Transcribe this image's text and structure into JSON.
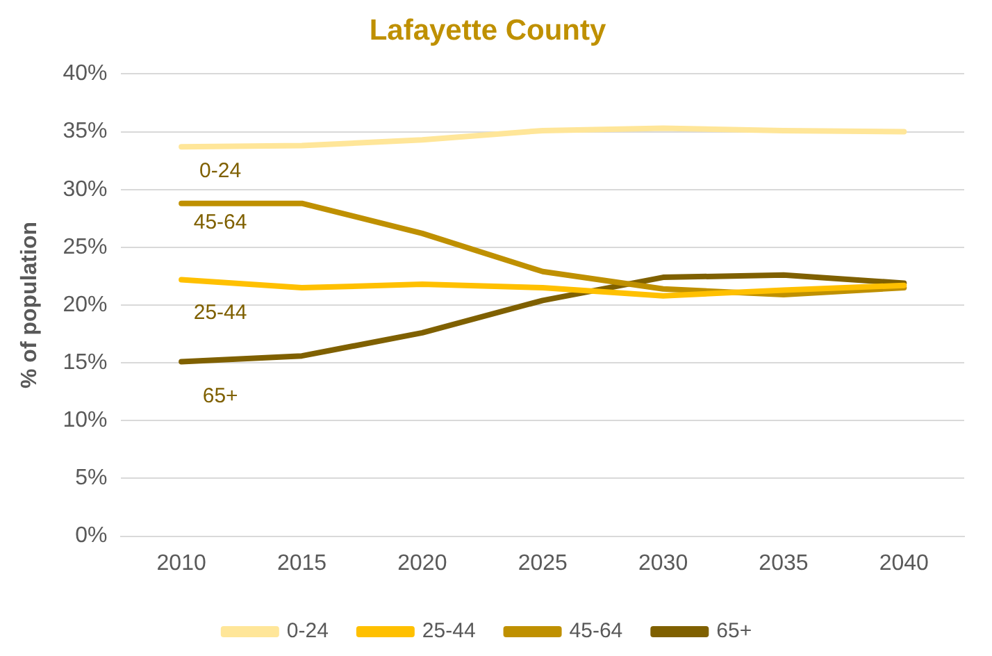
{
  "chart_data": {
    "type": "line",
    "title": "Lafayette County",
    "ylabel": "% of population",
    "categories": [
      "2010",
      "2015",
      "2020",
      "2025",
      "2030",
      "2035",
      "2040"
    ],
    "series": [
      {
        "name": "0-24",
        "color": "#ffe699",
        "values": [
          33.7,
          33.8,
          34.3,
          35.1,
          35.3,
          35.1,
          35.0
        ]
      },
      {
        "name": "25-44",
        "color": "#ffc000",
        "values": [
          22.2,
          21.5,
          21.8,
          21.5,
          20.8,
          21.3,
          21.7
        ]
      },
      {
        "name": "45-64",
        "color": "#bf9000",
        "values": [
          28.8,
          28.8,
          26.2,
          22.9,
          21.4,
          20.9,
          21.5
        ]
      },
      {
        "name": "65+",
        "color": "#7f6000",
        "values": [
          15.1,
          15.6,
          17.6,
          20.4,
          22.4,
          22.6,
          21.9
        ]
      }
    ],
    "ylim": [
      0,
      40
    ],
    "yticks": [
      {
        "value": 0,
        "label": "0%"
      },
      {
        "value": 5,
        "label": "5%"
      },
      {
        "value": 10,
        "label": "10%"
      },
      {
        "value": 15,
        "label": "15%"
      },
      {
        "value": 20,
        "label": "20%"
      },
      {
        "value": 25,
        "label": "25%"
      },
      {
        "value": 30,
        "label": "30%"
      },
      {
        "value": 35,
        "label": "35%"
      },
      {
        "value": 40,
        "label": "40%"
      }
    ],
    "grid": "y",
    "legend": "bottom",
    "marker": "none",
    "line_style": "solid"
  }
}
